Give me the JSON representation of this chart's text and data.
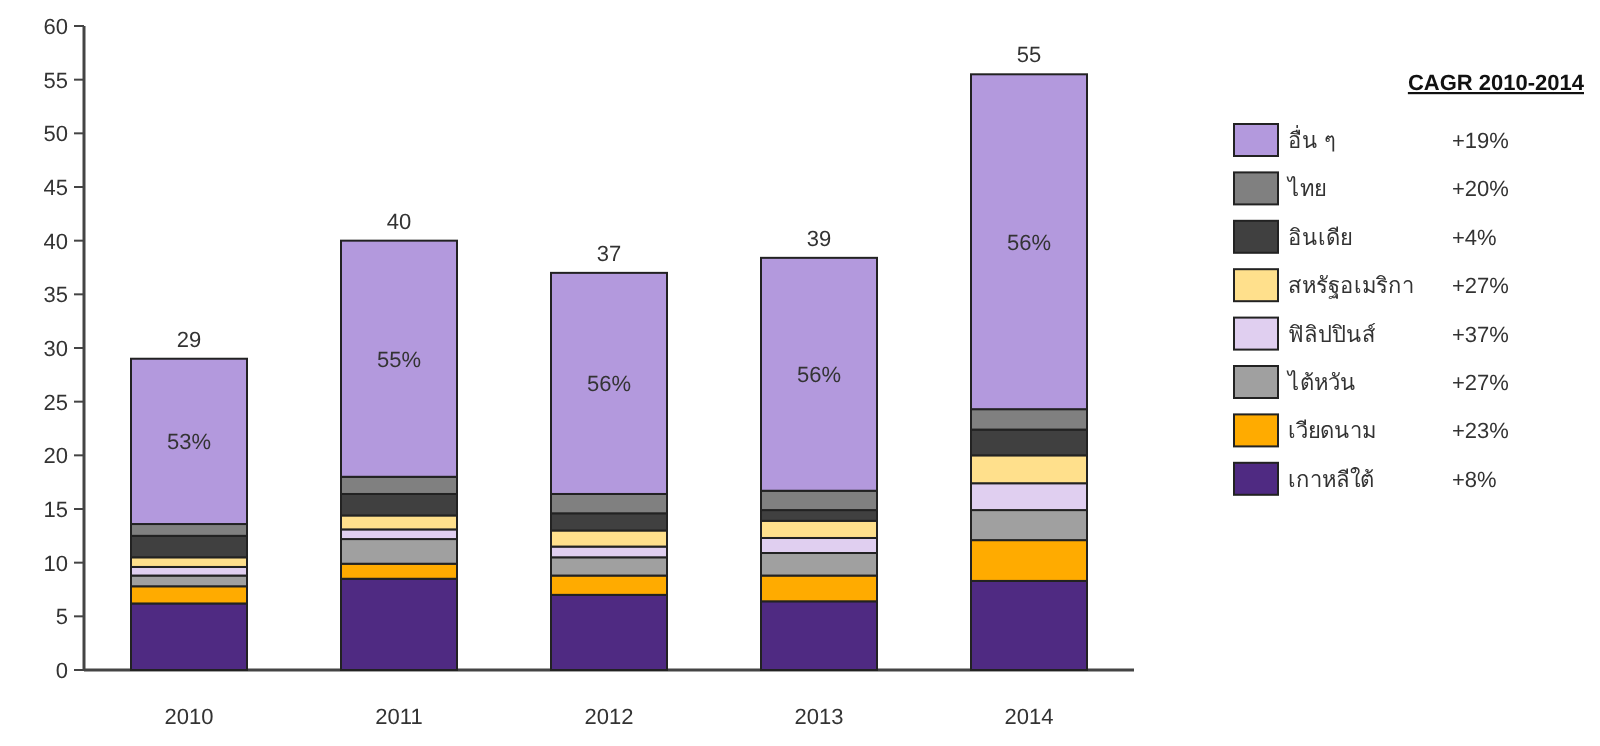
{
  "chart_data": {
    "type": "bar",
    "stacked": true,
    "categories": [
      "2010",
      "2011",
      "2012",
      "2013",
      "2014"
    ],
    "ylim": [
      0,
      60
    ],
    "yticks": [
      0,
      5,
      10,
      15,
      20,
      25,
      30,
      35,
      40,
      45,
      50,
      55,
      60
    ],
    "legend": "right",
    "legend_title": "CAGR 2010-2014",
    "totals": [
      "29",
      "40",
      "37",
      "39",
      "55"
    ],
    "series": [
      {
        "name": "เกาหลีใต้",
        "color": "#4f2a82",
        "values": [
          6.2,
          8.5,
          7.0,
          6.4,
          8.3
        ]
      },
      {
        "name": "เวียดนาม",
        "color": "#ffab00",
        "values": [
          1.6,
          1.4,
          1.8,
          2.4,
          3.8
        ]
      },
      {
        "name": "ไต้หวัน",
        "color": "#a0a0a0",
        "values": [
          1.0,
          2.3,
          1.7,
          2.1,
          2.8
        ]
      },
      {
        "name": "ฟิลิปปินส์",
        "color": "#e0cff0",
        "values": [
          0.8,
          0.9,
          1.0,
          1.4,
          2.5
        ]
      },
      {
        "name": "สหรัฐอเมริกา",
        "color": "#ffe08c",
        "values": [
          0.9,
          1.3,
          1.5,
          1.6,
          2.6
        ]
      },
      {
        "name": "อินเดีย",
        "color": "#404040",
        "values": [
          2.0,
          2.0,
          1.6,
          1.0,
          2.4
        ]
      },
      {
        "name": "ไทย",
        "color": "#808080",
        "values": [
          1.1,
          1.6,
          1.8,
          1.8,
          1.9
        ]
      },
      {
        "name": "อื่น ๆ",
        "color": "#b399dd",
        "values": [
          15.4,
          22.0,
          20.6,
          21.7,
          31.2
        ]
      }
    ],
    "annotations": [
      "+8%",
      "+23%",
      "+27%",
      "+37%",
      "+27%",
      "+4%",
      "+20%",
      "+19%",
      "53%",
      "55%",
      "56%",
      "56%",
      "56%"
    ]
  }
}
